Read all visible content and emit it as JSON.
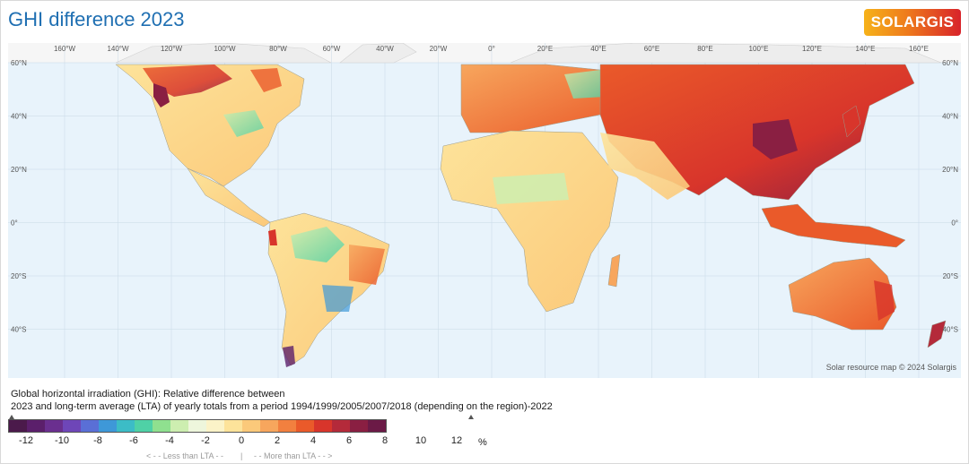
{
  "title": "GHI difference 2023",
  "logo_text": "SOLARGIS",
  "map": {
    "top_lon_labels": [
      "160°W",
      "140°W",
      "120°W",
      "100°W",
      "80°W",
      "60°W",
      "40°W",
      "20°W",
      "0°",
      "20°E",
      "40°E",
      "60°E",
      "80°E",
      "100°E",
      "120°E",
      "140°E",
      "160°E"
    ],
    "left_lat_labels": [
      "60°N",
      "40°N",
      "20°N",
      "0°",
      "20°S",
      "40°S"
    ],
    "right_lat_labels": [
      "60°N",
      "40°N",
      "20°N",
      "0°",
      "20°S",
      "40°S"
    ],
    "copyright": "Solar resource map © 2024 Solargis",
    "colors": {
      "ocean": "#e8f3fb",
      "graticule": "#c9d9e6",
      "polar_land": "#ededed"
    }
  },
  "caption": {
    "line1": "Global horizontal irradiation (GHI): Relative difference between",
    "line2": "2023 and long-term average (LTA) of yearly totals from a period 1994/1999/2005/2007/2018 (depending on the region)-2022"
  },
  "legend": {
    "colors": [
      "#4b1a4b",
      "#5b1f6b",
      "#6a2f8f",
      "#6e46b8",
      "#5a6fd6",
      "#3e98d8",
      "#3cbcc6",
      "#4fd1a6",
      "#8fe08f",
      "#cdeeb0",
      "#eef6dc",
      "#fbf3c8",
      "#fde39a",
      "#fbc97a",
      "#f7a65d",
      "#f2803f",
      "#ea5a2a",
      "#d8352b",
      "#b42a3a",
      "#8a1f42",
      "#6b1a46"
    ],
    "ticks": [
      "-12",
      "-10",
      "-8",
      "-6",
      "-4",
      "-2",
      "0",
      "2",
      "4",
      "6",
      "8",
      "10",
      "12"
    ],
    "unit": "%",
    "less_label": "< - -  Less than LTA  - -",
    "separator": "|",
    "more_label": "- -  More than LTA  - - >"
  }
}
